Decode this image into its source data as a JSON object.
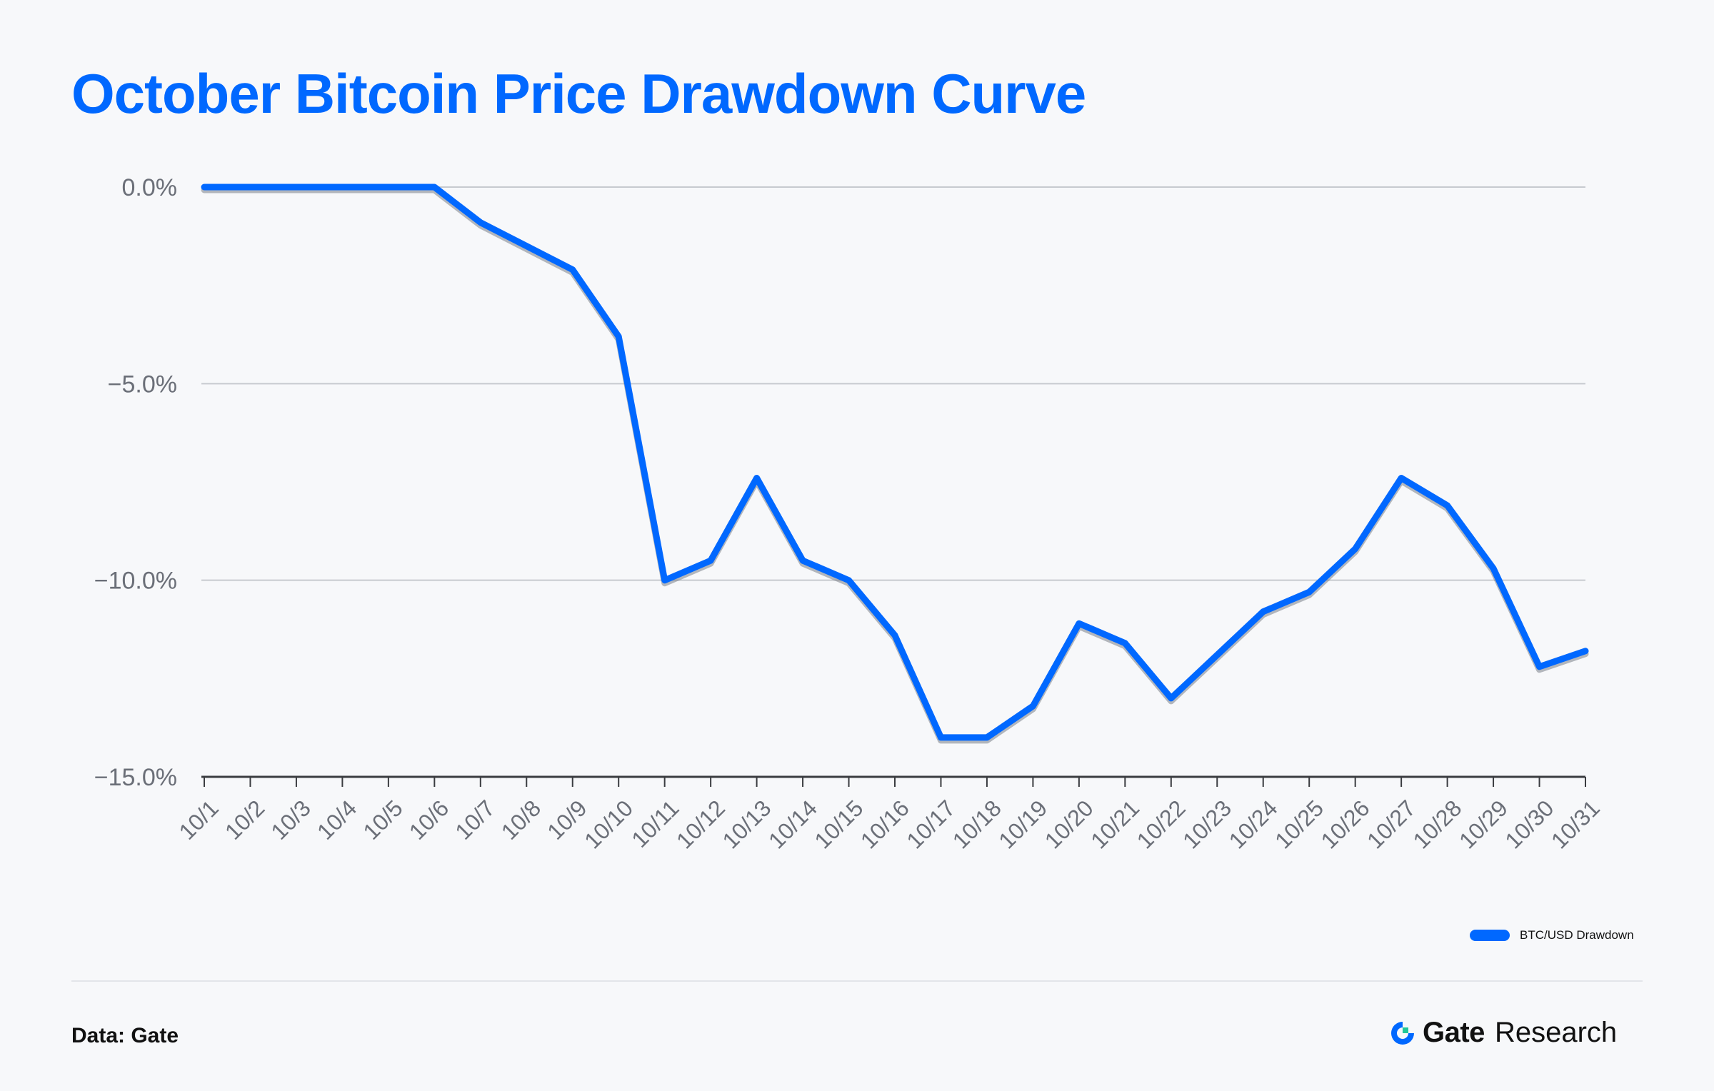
{
  "title": "October Bitcoin Price Drawdown Curve",
  "colors": {
    "accent": "#0068ff",
    "shadow": "#7a7f88",
    "grid": "#c7cacf",
    "axis": "#3a3c40",
    "text": "#6b6f78"
  },
  "chart_data": {
    "type": "line",
    "title": "October Bitcoin Price Drawdown Curve",
    "xlabel": "",
    "ylabel": "",
    "ylim": [
      -15.0,
      0.0
    ],
    "yticks": [
      0.0,
      -5.0,
      -10.0,
      -15.0
    ],
    "ytick_labels": [
      "0.0%",
      "−5.0%",
      "−10.0%",
      "−15.0%"
    ],
    "grid": true,
    "legend_position": "bottom-right",
    "categories": [
      "10/1",
      "10/2",
      "10/3",
      "10/4",
      "10/5",
      "10/6",
      "10/7",
      "10/8",
      "10/9",
      "10/10",
      "10/11",
      "10/12",
      "10/13",
      "10/14",
      "10/15",
      "10/16",
      "10/17",
      "10/18",
      "10/19",
      "10/20",
      "10/21",
      "10/22",
      "10/23",
      "10/24",
      "10/25",
      "10/26",
      "10/27",
      "10/28",
      "10/29",
      "10/30",
      "10/31"
    ],
    "series": [
      {
        "name": "BTC/USD Drawdown",
        "values": [
          0.0,
          0.0,
          0.0,
          0.0,
          0.0,
          0.0,
          -0.9,
          -1.5,
          -2.1,
          -3.8,
          -10.0,
          -9.5,
          -7.4,
          -9.5,
          -10.0,
          -11.4,
          -14.0,
          -14.0,
          -13.2,
          -11.1,
          -11.6,
          -13.0,
          -11.9,
          -10.8,
          -10.3,
          -9.2,
          -7.4,
          -8.1,
          -9.7,
          -12.2,
          -11.8
        ]
      }
    ]
  },
  "legend": {
    "label": "BTC/USD Drawdown"
  },
  "footer": {
    "source": "Data: Gate",
    "brand_name": "Gate",
    "brand_suffix": "Research"
  }
}
